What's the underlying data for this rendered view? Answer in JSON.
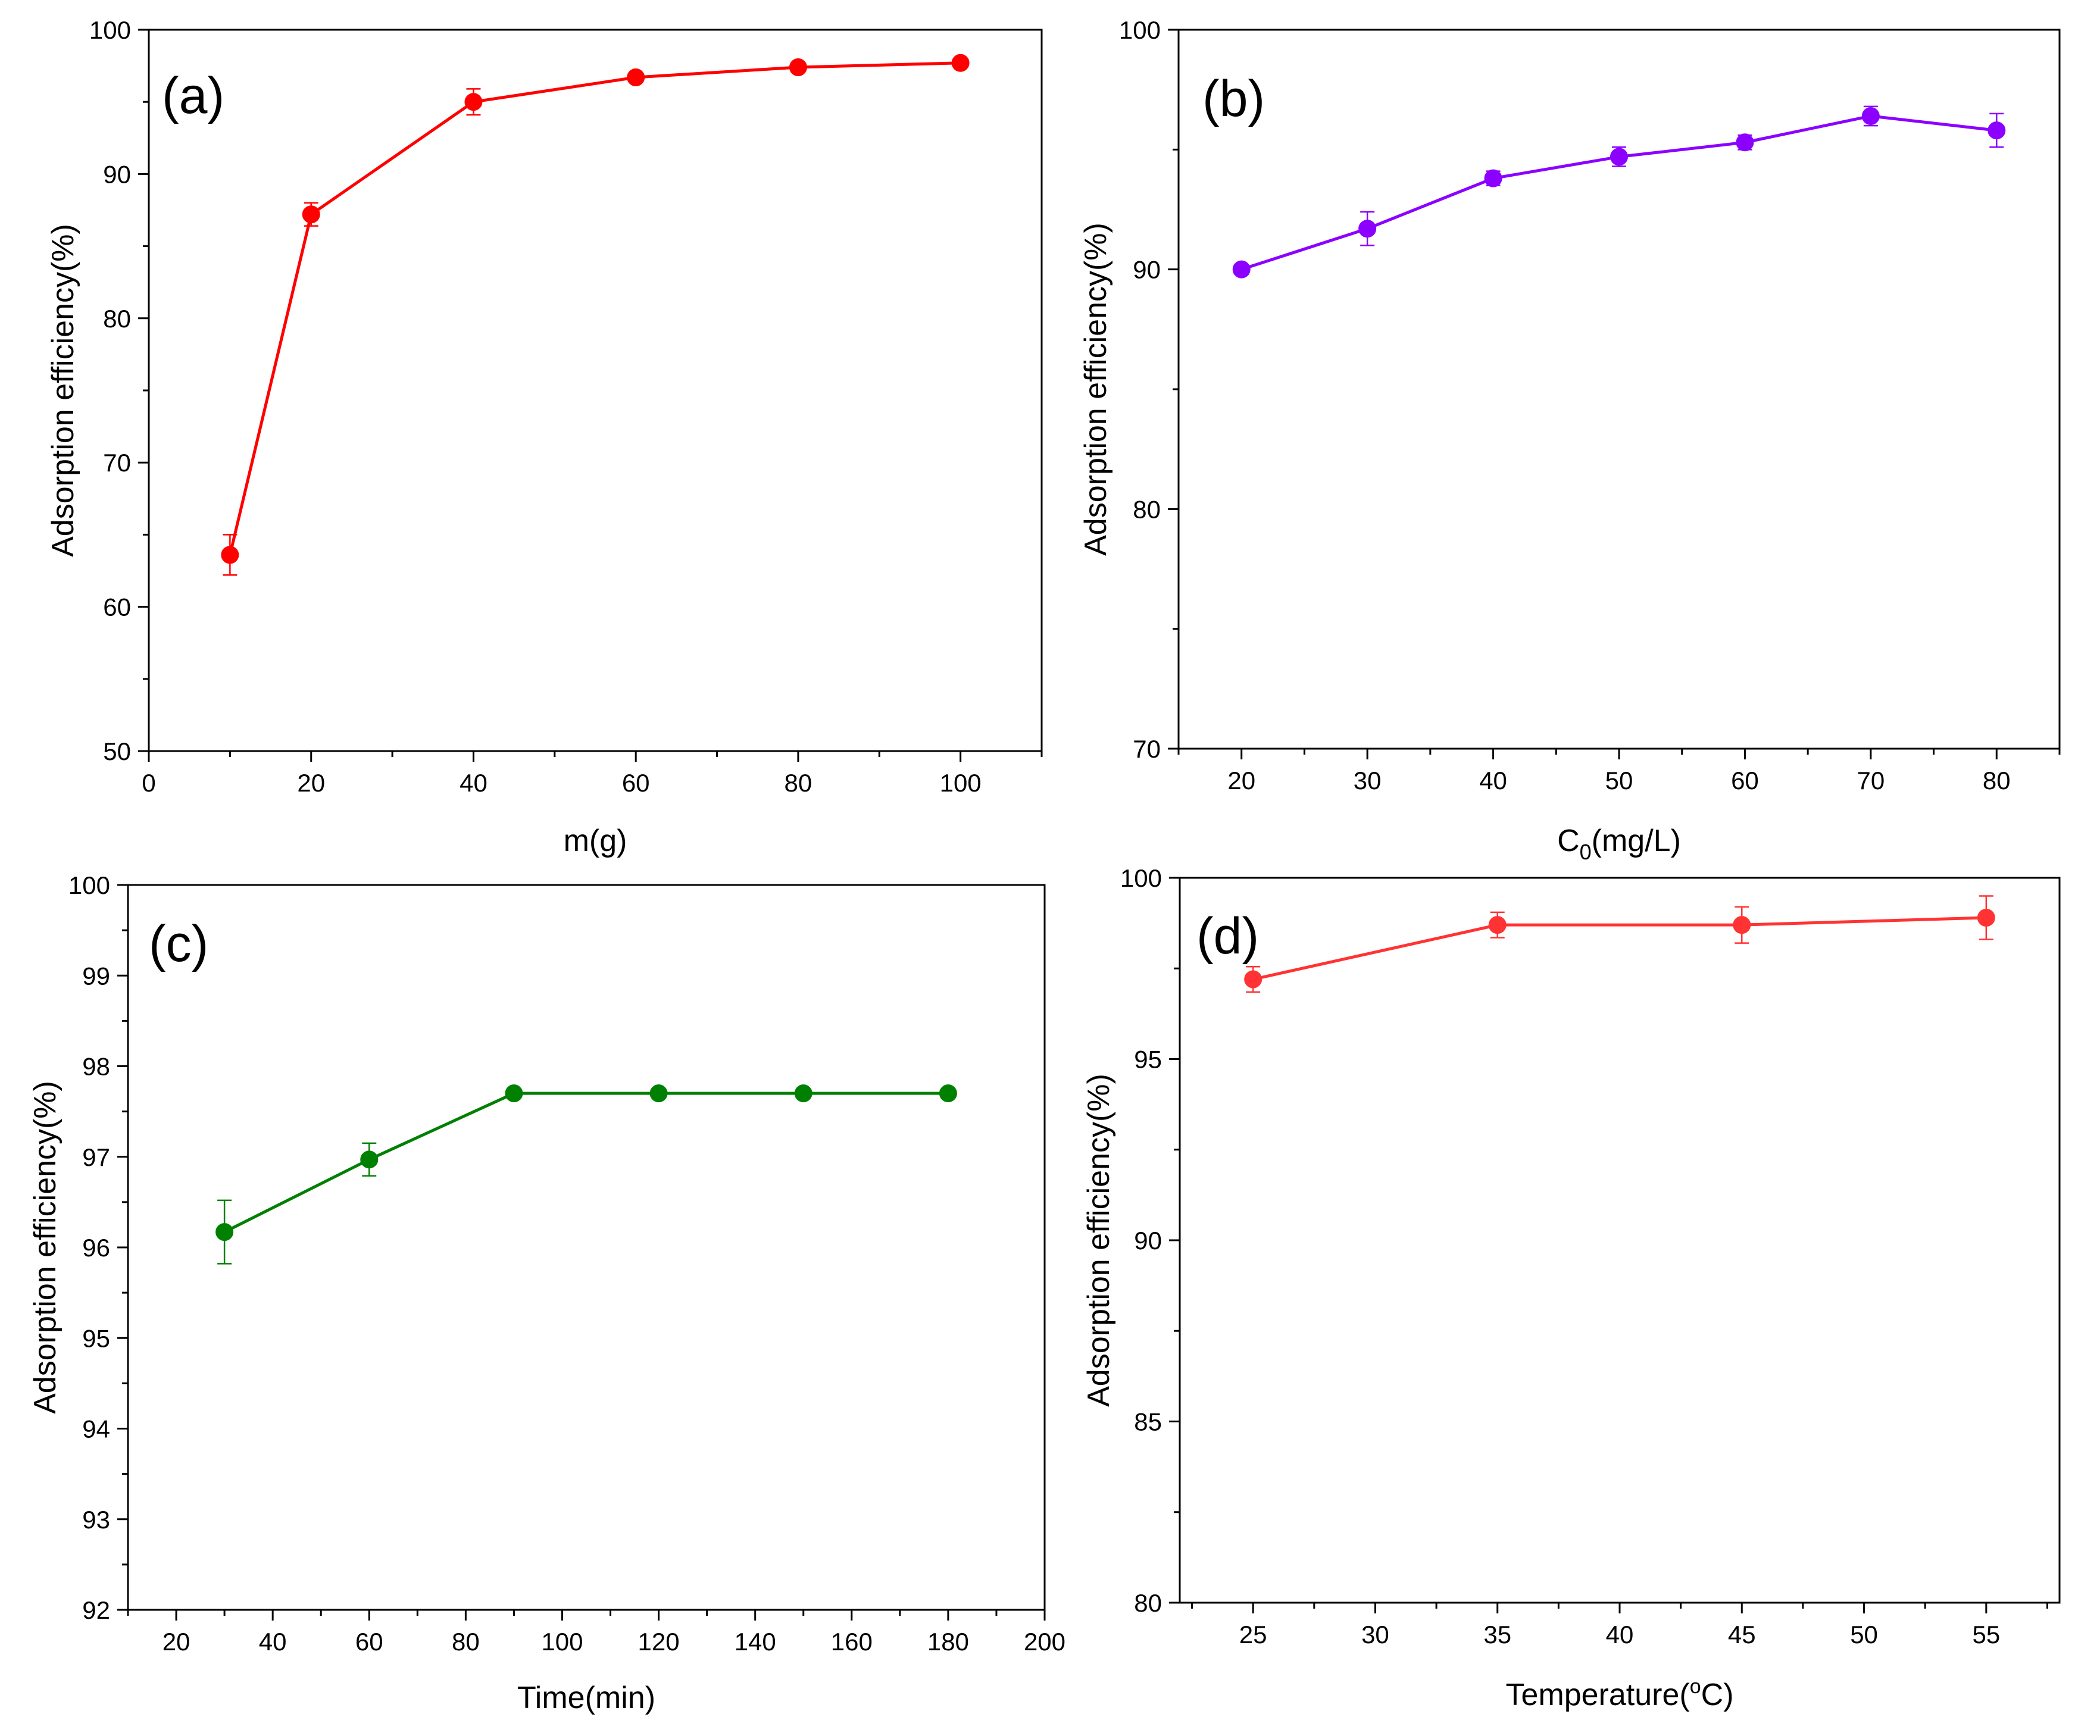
{
  "chart_data": [
    {
      "type": "line",
      "panel_label": "(a)",
      "xlabel": "m(g)",
      "ylabel": "Adsorption efficiency(%)",
      "xlim": [
        0,
        110
      ],
      "ylim": [
        50,
        100
      ],
      "xticks": [
        0,
        20,
        40,
        60,
        80,
        100
      ],
      "yticks": [
        50,
        60,
        70,
        80,
        90,
        100
      ],
      "grid": false,
      "series": [
        {
          "color": "#ff0000",
          "x": [
            10,
            20,
            40,
            60,
            80,
            100
          ],
          "y": [
            63.6,
            87.2,
            95.0,
            96.7,
            97.4,
            97.7
          ],
          "err": [
            1.4,
            0.8,
            0.9,
            0.3,
            0.3,
            0.3
          ]
        }
      ]
    },
    {
      "type": "line",
      "panel_label": "(b)",
      "xlabel": "C",
      "xlabel_sub": "0",
      "xlabel_rest": "(mg/L)",
      "ylabel": "Adsorption efficiency(%)",
      "xlim": [
        15,
        85
      ],
      "ylim": [
        70,
        100
      ],
      "xticks": [
        20,
        30,
        40,
        50,
        60,
        70,
        80
      ],
      "yticks": [
        70,
        80,
        90,
        100
      ],
      "grid": false,
      "series": [
        {
          "color": "#8b00ff",
          "x": [
            20,
            30,
            40,
            50,
            60,
            70,
            80
          ],
          "y": [
            90.0,
            91.7,
            93.8,
            94.7,
            95.3,
            96.4,
            95.8
          ],
          "err": [
            0.2,
            0.7,
            0.3,
            0.4,
            0.3,
            0.4,
            0.7
          ]
        }
      ]
    },
    {
      "type": "line",
      "panel_label": "(c)",
      "xlabel": "Time(min)",
      "ylabel": "Adsorption efficiency(%)",
      "xlim": [
        10,
        200
      ],
      "ylim": [
        92,
        100
      ],
      "xticks": [
        20,
        40,
        60,
        80,
        100,
        120,
        140,
        160,
        180,
        200
      ],
      "yticks": [
        92,
        93,
        94,
        95,
        96,
        97,
        98,
        99,
        100
      ],
      "grid": false,
      "series": [
        {
          "color": "#008000",
          "x": [
            30,
            60,
            90,
            120,
            150,
            180
          ],
          "y": [
            96.17,
            96.97,
            97.7,
            97.7,
            97.7,
            97.7
          ],
          "err": [
            0.35,
            0.18,
            0.03,
            0.03,
            0.03,
            0.03
          ]
        }
      ]
    },
    {
      "type": "line",
      "panel_label": "(d)",
      "xlabel": "Temperature(",
      "xlabel_sup": "o",
      "xlabel_rest": "C)",
      "ylabel": "Adsorption efficiency(%)",
      "xlim": [
        22,
        58
      ],
      "ylim": [
        80,
        100
      ],
      "xticks": [
        25,
        30,
        35,
        40,
        45,
        50,
        55
      ],
      "yticks": [
        80,
        85,
        90,
        95,
        100
      ],
      "grid": false,
      "series": [
        {
          "color": "#ff3333",
          "x": [
            25,
            35,
            45,
            55
          ],
          "y": [
            97.2,
            98.7,
            98.7,
            98.9
          ],
          "err": [
            0.35,
            0.35,
            0.5,
            0.6
          ]
        }
      ]
    }
  ]
}
